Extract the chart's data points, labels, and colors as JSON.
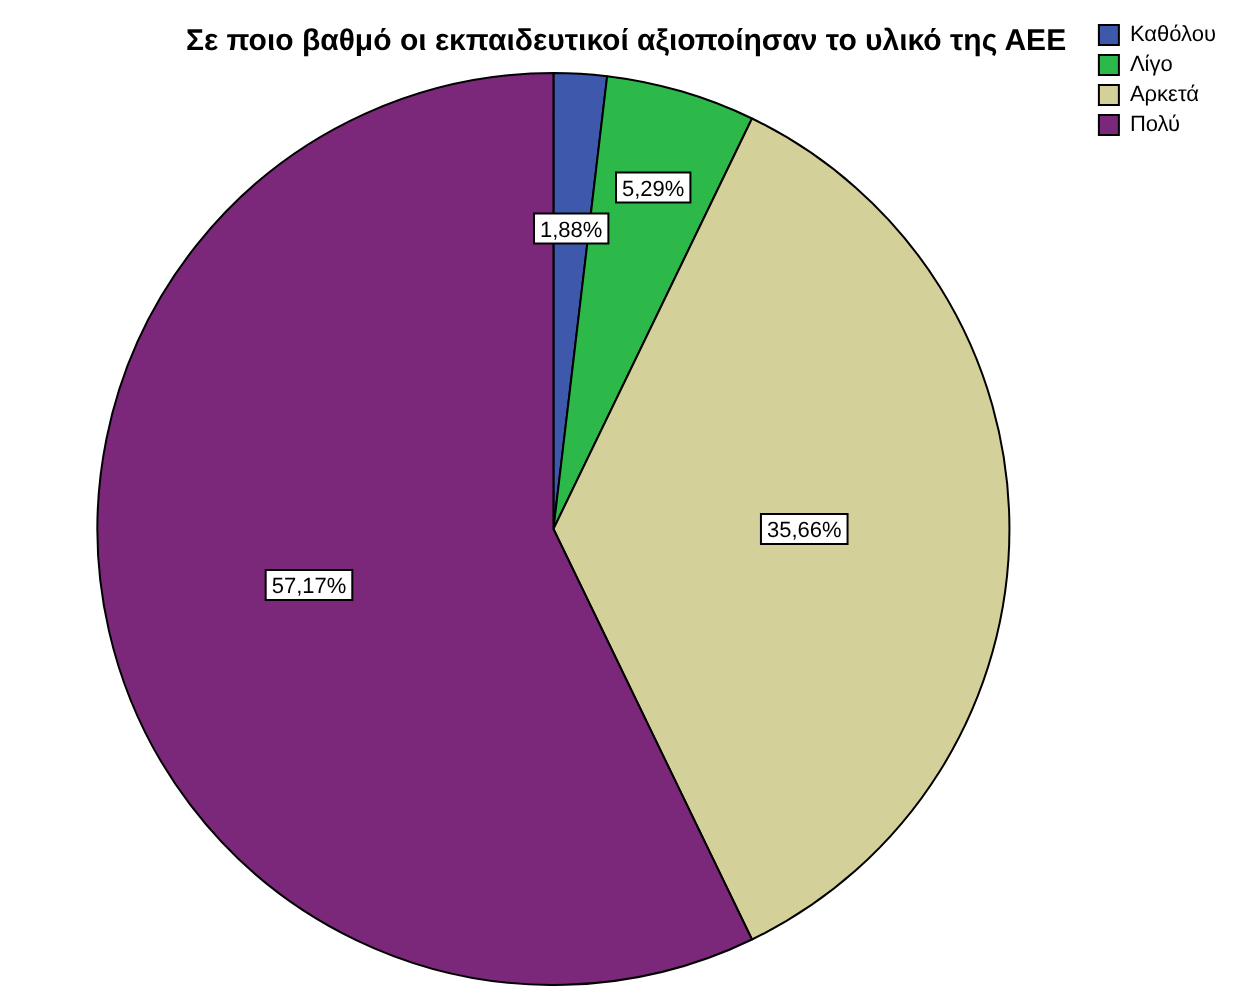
{
  "chart_data": {
    "type": "pie",
    "title": "Σε ποιο βαθμό οι εκπαιδευτικοί αξιοποίησαν το υλικό της ΑΕΕ",
    "categories": [
      "Καθόλου",
      "Λίγο",
      "Αρκετά",
      "Πολύ"
    ],
    "values": [
      1.88,
      5.29,
      35.66,
      57.17
    ],
    "colors": [
      "#3e58ac",
      "#2db84a",
      "#d4d09a",
      "#7b287a"
    ],
    "value_labels": [
      "1,88%",
      "5,29%",
      "35,66%",
      "57,17%"
    ],
    "legend": "top right"
  }
}
